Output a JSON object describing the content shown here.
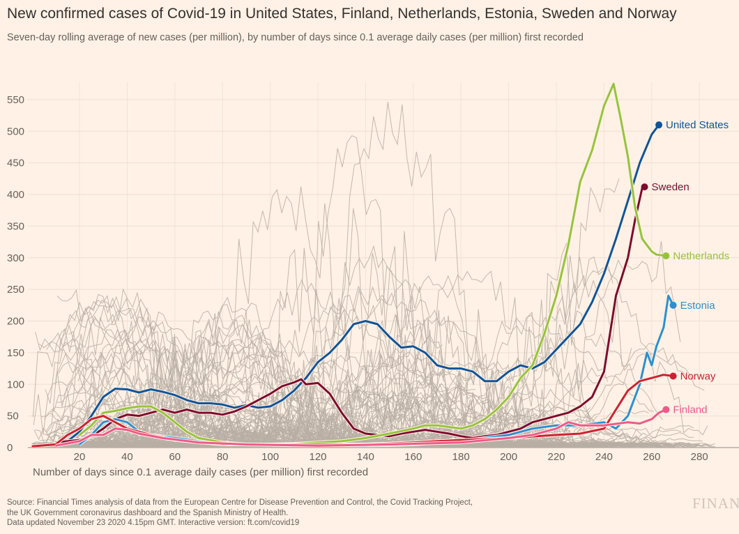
{
  "title": "New confirmed cases of Covid-19 in United States, Finland, Netherlands, Estonia, Sweden and Norway",
  "subtitle": "Seven-day rolling average of new cases (per million), by number of days since 0.1 average daily cases (per million) first recorded",
  "source_lines": [
    "Source: Financial Times analysis of data from the European Centre for Disease Prevention and Control, the Covid Tracking Project,",
    "the UK Government coronavirus dashboard and the Spanish Ministry of Health.",
    "Data updated November 23 2020 4.15pm GMT. Interactive version: ft.com/covid19"
  ],
  "logo_text": "FINANCIAL TIMES",
  "chart_data": {
    "type": "line",
    "title": "New confirmed cases of Covid-19 in United States, Finland, Netherlands, Estonia, Sweden and Norway",
    "xlabel": "Number of days since 0.1 average daily cases (per million) first recorded",
    "ylabel": "",
    "xlim": [
      0,
      295
    ],
    "ylim": [
      0,
      580
    ],
    "x_ticks": [
      20,
      40,
      60,
      80,
      100,
      120,
      140,
      160,
      180,
      200,
      220,
      240,
      260,
      280
    ],
    "y_ticks": [
      0,
      50,
      100,
      150,
      200,
      250,
      300,
      350,
      400,
      450,
      500,
      550
    ],
    "grid": true,
    "legend": "direct labels at line ends",
    "background_series_color": "#b7aea5",
    "series": [
      {
        "name": "United States",
        "color": "#0f5499",
        "points": [
          [
            15,
            10
          ],
          [
            20,
            25
          ],
          [
            25,
            50
          ],
          [
            30,
            80
          ],
          [
            35,
            93
          ],
          [
            40,
            92
          ],
          [
            45,
            87
          ],
          [
            50,
            92
          ],
          [
            55,
            88
          ],
          [
            60,
            83
          ],
          [
            65,
            75
          ],
          [
            70,
            70
          ],
          [
            75,
            70
          ],
          [
            80,
            68
          ],
          [
            85,
            63
          ],
          [
            90,
            67
          ],
          [
            95,
            63
          ],
          [
            100,
            65
          ],
          [
            105,
            75
          ],
          [
            110,
            90
          ],
          [
            115,
            110
          ],
          [
            120,
            135
          ],
          [
            125,
            150
          ],
          [
            130,
            170
          ],
          [
            135,
            195
          ],
          [
            140,
            200
          ],
          [
            145,
            195
          ],
          [
            150,
            175
          ],
          [
            155,
            158
          ],
          [
            160,
            160
          ],
          [
            165,
            150
          ],
          [
            170,
            130
          ],
          [
            175,
            125
          ],
          [
            180,
            125
          ],
          [
            185,
            120
          ],
          [
            190,
            105
          ],
          [
            195,
            105
          ],
          [
            200,
            120
          ],
          [
            205,
            130
          ],
          [
            210,
            125
          ],
          [
            215,
            135
          ],
          [
            220,
            155
          ],
          [
            225,
            175
          ],
          [
            230,
            195
          ],
          [
            235,
            230
          ],
          [
            240,
            275
          ],
          [
            245,
            330
          ],
          [
            250,
            390
          ],
          [
            255,
            450
          ],
          [
            260,
            495
          ],
          [
            263,
            510
          ]
        ]
      },
      {
        "name": "Sweden",
        "color": "#7d0b2e",
        "points": [
          [
            10,
            8
          ],
          [
            15,
            10
          ],
          [
            20,
            12
          ],
          [
            25,
            18
          ],
          [
            30,
            30
          ],
          [
            35,
            45
          ],
          [
            40,
            52
          ],
          [
            45,
            50
          ],
          [
            50,
            55
          ],
          [
            55,
            60
          ],
          [
            60,
            55
          ],
          [
            65,
            60
          ],
          [
            70,
            55
          ],
          [
            75,
            55
          ],
          [
            80,
            52
          ],
          [
            85,
            57
          ],
          [
            90,
            65
          ],
          [
            95,
            75
          ],
          [
            100,
            85
          ],
          [
            105,
            97
          ],
          [
            110,
            103
          ],
          [
            113,
            108
          ],
          [
            115,
            100
          ],
          [
            120,
            102
          ],
          [
            125,
            85
          ],
          [
            130,
            55
          ],
          [
            135,
            30
          ],
          [
            140,
            22
          ],
          [
            145,
            20
          ],
          [
            150,
            18
          ],
          [
            155,
            22
          ],
          [
            160,
            25
          ],
          [
            165,
            28
          ],
          [
            170,
            25
          ],
          [
            175,
            22
          ],
          [
            180,
            18
          ],
          [
            185,
            15
          ],
          [
            190,
            18
          ],
          [
            195,
            20
          ],
          [
            200,
            25
          ],
          [
            205,
            30
          ],
          [
            210,
            40
          ],
          [
            215,
            45
          ],
          [
            220,
            50
          ],
          [
            225,
            55
          ],
          [
            230,
            65
          ],
          [
            235,
            80
          ],
          [
            240,
            120
          ],
          [
            245,
            240
          ],
          [
            250,
            300
          ],
          [
            253,
            360
          ],
          [
            256,
            410
          ],
          [
            257,
            412
          ]
        ]
      },
      {
        "name": "Netherlands",
        "color": "#96c33c",
        "points": [
          [
            20,
            20
          ],
          [
            25,
            35
          ],
          [
            30,
            55
          ],
          [
            35,
            58
          ],
          [
            40,
            62
          ],
          [
            45,
            65
          ],
          [
            50,
            65
          ],
          [
            55,
            55
          ],
          [
            60,
            40
          ],
          [
            65,
            25
          ],
          [
            70,
            15
          ],
          [
            80,
            8
          ],
          [
            90,
            5
          ],
          [
            100,
            5
          ],
          [
            110,
            6
          ],
          [
            120,
            8
          ],
          [
            130,
            10
          ],
          [
            140,
            15
          ],
          [
            150,
            22
          ],
          [
            160,
            30
          ],
          [
            165,
            35
          ],
          [
            170,
            35
          ],
          [
            180,
            30
          ],
          [
            185,
            35
          ],
          [
            190,
            45
          ],
          [
            195,
            60
          ],
          [
            200,
            80
          ],
          [
            205,
            110
          ],
          [
            210,
            130
          ],
          [
            215,
            180
          ],
          [
            220,
            240
          ],
          [
            225,
            320
          ],
          [
            230,
            420
          ],
          [
            235,
            470
          ],
          [
            240,
            540
          ],
          [
            244,
            575
          ],
          [
            247,
            520
          ],
          [
            250,
            460
          ],
          [
            253,
            380
          ],
          [
            256,
            330
          ],
          [
            260,
            310
          ],
          [
            262,
            305
          ],
          [
            266,
            303
          ]
        ]
      },
      {
        "name": "Estonia",
        "color": "#2b90cf",
        "points": [
          [
            20,
            5
          ],
          [
            25,
            20
          ],
          [
            30,
            40
          ],
          [
            35,
            45
          ],
          [
            40,
            40
          ],
          [
            45,
            25
          ],
          [
            50,
            20
          ],
          [
            60,
            15
          ],
          [
            70,
            10
          ],
          [
            80,
            5
          ],
          [
            100,
            5
          ],
          [
            120,
            3
          ],
          [
            140,
            3
          ],
          [
            160,
            5
          ],
          [
            170,
            8
          ],
          [
            180,
            10
          ],
          [
            190,
            15
          ],
          [
            200,
            20
          ],
          [
            210,
            30
          ],
          [
            220,
            35
          ],
          [
            230,
            35
          ],
          [
            240,
            40
          ],
          [
            245,
            30
          ],
          [
            250,
            50
          ],
          [
            255,
            100
          ],
          [
            258,
            150
          ],
          [
            260,
            130
          ],
          [
            262,
            160
          ],
          [
            265,
            190
          ],
          [
            267,
            240
          ],
          [
            269,
            225
          ]
        ]
      },
      {
        "name": "Norway",
        "color": "#cc2233",
        "points": [
          [
            0,
            2
          ],
          [
            10,
            5
          ],
          [
            15,
            20
          ],
          [
            20,
            30
          ],
          [
            25,
            45
          ],
          [
            30,
            50
          ],
          [
            35,
            40
          ],
          [
            40,
            30
          ],
          [
            50,
            20
          ],
          [
            60,
            12
          ],
          [
            80,
            5
          ],
          [
            100,
            5
          ],
          [
            120,
            5
          ],
          [
            140,
            5
          ],
          [
            160,
            8
          ],
          [
            180,
            12
          ],
          [
            200,
            15
          ],
          [
            220,
            20
          ],
          [
            230,
            22
          ],
          [
            240,
            30
          ],
          [
            245,
            60
          ],
          [
            250,
            90
          ],
          [
            255,
            105
          ],
          [
            260,
            110
          ],
          [
            265,
            115
          ],
          [
            269,
            113
          ]
        ]
      },
      {
        "name": "Finland",
        "color": "#f0588a",
        "points": [
          [
            10,
            3
          ],
          [
            20,
            10
          ],
          [
            25,
            20
          ],
          [
            30,
            20
          ],
          [
            35,
            30
          ],
          [
            40,
            28
          ],
          [
            45,
            22
          ],
          [
            55,
            15
          ],
          [
            70,
            8
          ],
          [
            90,
            5
          ],
          [
            120,
            3
          ],
          [
            150,
            5
          ],
          [
            180,
            8
          ],
          [
            200,
            15
          ],
          [
            210,
            20
          ],
          [
            220,
            30
          ],
          [
            225,
            40
          ],
          [
            230,
            35
          ],
          [
            240,
            35
          ],
          [
            250,
            40
          ],
          [
            255,
            38
          ],
          [
            260,
            45
          ],
          [
            263,
            55
          ],
          [
            266,
            60
          ]
        ]
      }
    ]
  }
}
